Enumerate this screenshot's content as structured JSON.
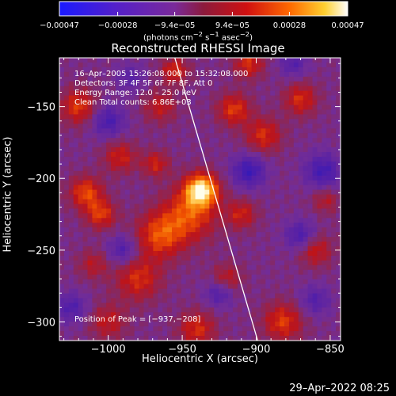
{
  "chart_data": {
    "type": "heatmap",
    "title": "Reconstructed RHESSI Image",
    "xlabel": "Heliocentric X (arcsec)",
    "ylabel": "Heliocentric Y (arcsec)",
    "xlim": [
      -1033,
      -843
    ],
    "ylim": [
      -313,
      -116
    ],
    "x_ticks": [
      -1000,
      -950,
      -900,
      -850
    ],
    "x_tick_labels": [
      "−1000",
      "−950",
      "−900",
      "−850"
    ],
    "y_ticks": [
      -150,
      -200,
      -250,
      -300
    ],
    "y_tick_labels": [
      "−150",
      "−200",
      "−250",
      "−300"
    ],
    "colorbar": {
      "ticks": [
        -0.00047,
        -0.00028,
        -9.4e-05,
        9.4e-05,
        0.00028,
        0.00047
      ],
      "tick_labels": [
        "−0.00047",
        "−0.00028",
        "−9.4e−05",
        "9.4e−05",
        "0.00028",
        "0.00047"
      ],
      "title_main": "(photons cm",
      "title_sup1": "−2",
      "title_mid1": " s",
      "title_sup2": "−1",
      "title_mid2": " asec",
      "title_sup3": "−2",
      "title_end": ")",
      "range": [
        -0.00047,
        0.00047
      ]
    },
    "annotations": {
      "time": "16–Apr–2005 15:26:08.000 to 15:32:08.000",
      "detectors": "Detectors: 3F 4F 5F 6F 7F 8F, Att 0",
      "energy": "Energy Range: 12.0 – 25.0 keV",
      "clean": "Clean     Total counts: 6.86E+03",
      "peak": "Position of Peak = [−937,−208]"
    },
    "limb_line": {
      "x": [
        -955,
        -899
      ],
      "y": [
        -116,
        -313
      ]
    },
    "peak": {
      "x": -937,
      "y": -208
    },
    "colors": {
      "background": "#000000",
      "axes": "#ffffff",
      "limb": "#ffffff"
    }
  },
  "timestamp": "29–Apr–2022 08:25"
}
